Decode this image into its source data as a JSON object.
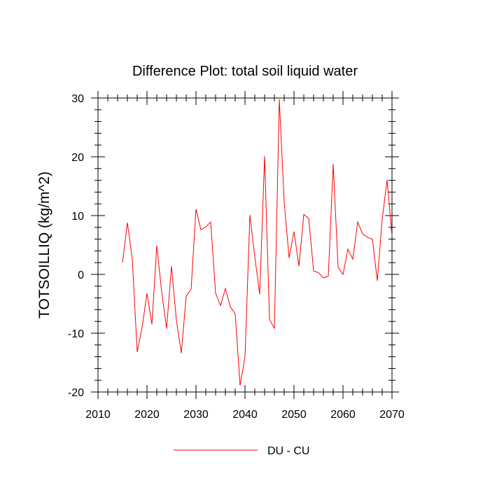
{
  "chart_data": {
    "type": "line",
    "title": "Difference Plot: total soil liquid water",
    "xlabel": "",
    "ylabel": "TOTSOILLIQ  (kg/m^2)",
    "xlim": [
      2010,
      2070
    ],
    "ylim": [
      -20,
      30
    ],
    "x_ticks": [
      2010,
      2020,
      2030,
      2040,
      2050,
      2060,
      2070
    ],
    "y_ticks": [
      -20,
      -10,
      0,
      10,
      20,
      30
    ],
    "x_tick_labels": [
      "2010",
      "2020",
      "2030",
      "2040",
      "2050",
      "2060",
      "2070"
    ],
    "y_tick_labels": [
      "-20",
      "-10",
      "0",
      "10",
      "20",
      "30"
    ],
    "x_minor_step": 2,
    "y_minor_step": 2,
    "legend_position": "bottom-center",
    "series": [
      {
        "name": "DU - CU",
        "color": "#ff0000",
        "x": [
          2015,
          2016,
          2017,
          2018,
          2019,
          2020,
          2021,
          2022,
          2023,
          2024,
          2025,
          2026,
          2027,
          2028,
          2029,
          2030,
          2031,
          2032,
          2033,
          2034,
          2035,
          2036,
          2037,
          2038,
          2039,
          2040,
          2041,
          2042,
          2043,
          2044,
          2045,
          2046,
          2047,
          2048,
          2049,
          2050,
          2051,
          2052,
          2053,
          2054,
          2055,
          2056,
          2057,
          2058,
          2059,
          2060,
          2061,
          2062,
          2063,
          2064,
          2065,
          2066,
          2067,
          2068,
          2069,
          2070
        ],
        "values": [
          2.0,
          8.8,
          2.6,
          -13.2,
          -9.0,
          -3.2,
          -8.5,
          4.9,
          -3.0,
          -9.2,
          1.4,
          -7.8,
          -13.4,
          -3.7,
          -2.5,
          11.1,
          7.6,
          8.1,
          8.9,
          -3.2,
          -5.3,
          -2.4,
          -5.5,
          -6.7,
          -18.9,
          -14.0,
          10.1,
          3.0,
          -3.4,
          20.1,
          -7.6,
          -9.2,
          29.8,
          12.3,
          2.8,
          7.3,
          1.4,
          10.2,
          9.5,
          0.6,
          0.3,
          -0.6,
          -0.3,
          18.8,
          1.2,
          0.0,
          4.3,
          2.6,
          8.9,
          6.9,
          6.3,
          6.0,
          -1.1,
          9.4,
          16.1,
          6.5
        ]
      }
    ]
  }
}
